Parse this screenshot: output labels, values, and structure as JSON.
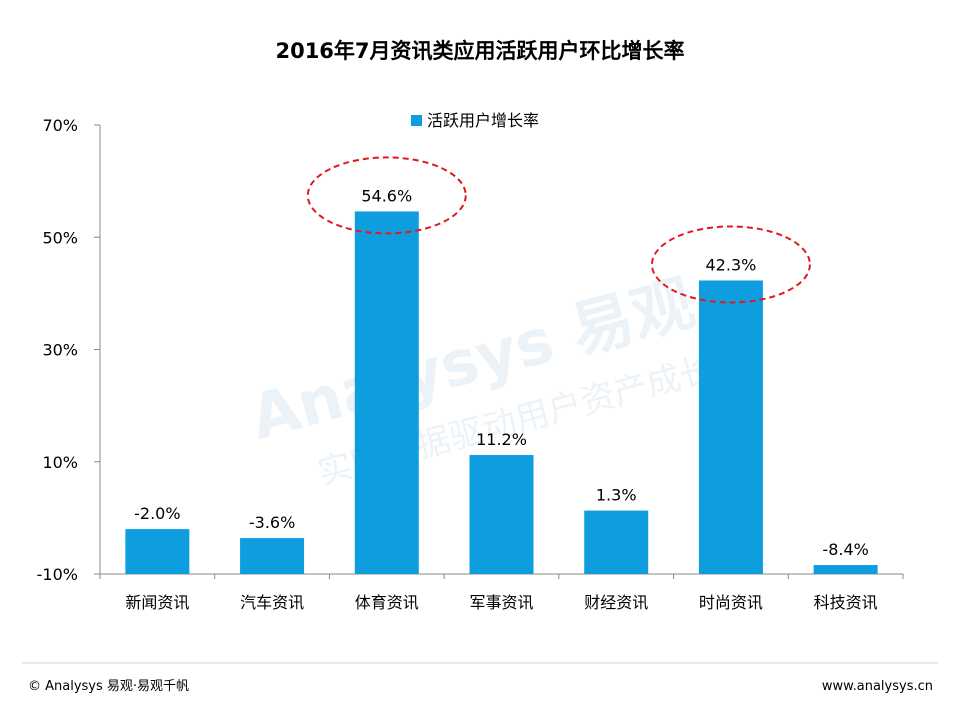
{
  "chart_data": {
    "type": "bar",
    "title": "2016年7月资讯类应用活跃用户环比增长率",
    "categories": [
      "新闻资讯",
      "汽车资讯",
      "体育资讯",
      "军事资讯",
      "财经资讯",
      "时尚资讯",
      "科技资讯"
    ],
    "series": [
      {
        "name": "活跃用户增长率",
        "values": [
          -2.0,
          -3.6,
          54.6,
          11.2,
          1.3,
          42.3,
          -8.4
        ],
        "data_labels": [
          "-2.0%",
          "-3.6%",
          "54.6%",
          "11.2%",
          "1.3%",
          "42.3%",
          "-8.4%"
        ]
      }
    ],
    "yticks": [
      "70%",
      "50%",
      "30%",
      "10%",
      "-10%"
    ],
    "ylim": [
      -10,
      70
    ],
    "grid": false,
    "legend_position": "top-center",
    "highlighted_categories": [
      "体育资讯",
      "时尚资讯"
    ],
    "colors": {
      "bar": "#0e9ee0",
      "highlight_ellipse": "#e0191e",
      "axis": "#888888"
    }
  },
  "watermark": {
    "brand": "Analysys 易观",
    "slogan": "实时数据驱动用户资产成长"
  },
  "footer": {
    "left": "© Analysys 易观·易观千帆",
    "right": "www.analysys.cn"
  }
}
